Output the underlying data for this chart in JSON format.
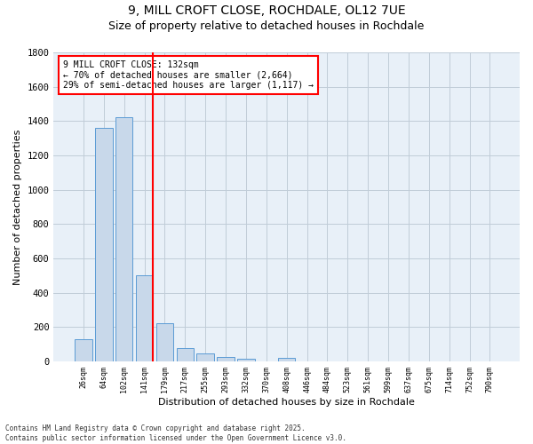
{
  "title_line1": "9, MILL CROFT CLOSE, ROCHDALE, OL12 7UE",
  "title_line2": "Size of property relative to detached houses in Rochdale",
  "xlabel": "Distribution of detached houses by size in Rochdale",
  "ylabel": "Number of detached properties",
  "bar_labels": [
    "26sqm",
    "64sqm",
    "102sqm",
    "141sqm",
    "179sqm",
    "217sqm",
    "255sqm",
    "293sqm",
    "332sqm",
    "370sqm",
    "408sqm",
    "446sqm",
    "484sqm",
    "523sqm",
    "561sqm",
    "599sqm",
    "637sqm",
    "675sqm",
    "714sqm",
    "752sqm",
    "790sqm"
  ],
  "bar_values": [
    130,
    1360,
    1420,
    500,
    225,
    80,
    48,
    28,
    18,
    0,
    20,
    0,
    0,
    0,
    0,
    0,
    0,
    0,
    0,
    0,
    0
  ],
  "bar_color": "#c8d8ea",
  "bar_edge_color": "#5b9bd5",
  "vline_x_index": 3,
  "vline_color": "red",
  "ylim": [
    0,
    1800
  ],
  "yticks": [
    0,
    200,
    400,
    600,
    800,
    1000,
    1200,
    1400,
    1600,
    1800
  ],
  "annotation_text": "9 MILL CROFT CLOSE: 132sqm\n← 70% of detached houses are smaller (2,664)\n29% of semi-detached houses are larger (1,117) →",
  "annotation_box_color": "red",
  "grid_color": "#c0ccd8",
  "bg_color": "#e8f0f8",
  "footnote": "Contains HM Land Registry data © Crown copyright and database right 2025.\nContains public sector information licensed under the Open Government Licence v3.0."
}
